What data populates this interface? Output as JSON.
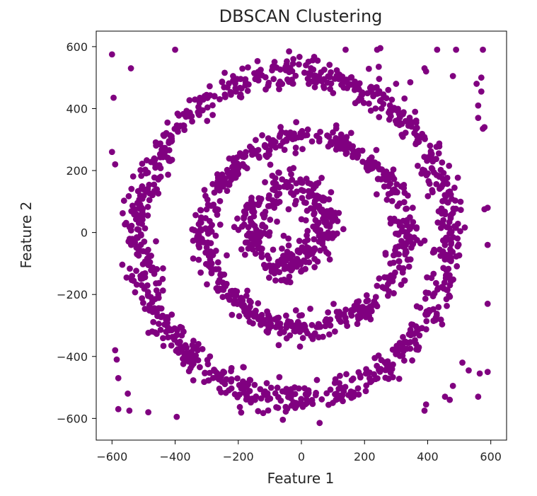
{
  "chart_data": {
    "type": "scatter",
    "title": "DBSCAN Clustering",
    "xlabel": "Feature 1",
    "ylabel": "Feature 2",
    "xlim": [
      -650,
      650
    ],
    "ylim": [
      -670,
      650
    ],
    "xticks": [
      -600,
      -400,
      -200,
      0,
      200,
      400,
      600
    ],
    "yticks": [
      -600,
      -400,
      -200,
      0,
      200,
      400,
      600
    ],
    "xtick_labels": [
      "−600",
      "−400",
      "−200",
      "0",
      "200",
      "400",
      "600"
    ],
    "ytick_labels": [
      "−600",
      "−400",
      "−200",
      "0",
      "200",
      "400",
      "600"
    ],
    "grid": false,
    "point_color": "#800080",
    "rings": [
      {
        "center": [
          -20,
          -10
        ],
        "radius_x": 490,
        "radius_y": 525,
        "noise": 28,
        "count": 950
      },
      {
        "center": [
          10,
          0
        ],
        "radius_x": 315,
        "radius_y": 305,
        "noise": 24,
        "count": 600
      },
      {
        "center": [
          -40,
          20
        ],
        "radius_x": 120,
        "radius_y": 120,
        "noise": 35,
        "count": 320
      }
    ],
    "outliers": [
      [
        -600,
        575
      ],
      [
        -540,
        530
      ],
      [
        -400,
        590
      ],
      [
        -595,
        435
      ],
      [
        -600,
        260
      ],
      [
        -590,
        220
      ],
      [
        -580,
        -570
      ],
      [
        -545,
        -575
      ],
      [
        -550,
        -520
      ],
      [
        -485,
        -580
      ],
      [
        -395,
        -595
      ],
      [
        -590,
        -380
      ],
      [
        -585,
        -410
      ],
      [
        -580,
        -470
      ],
      [
        140,
        590
      ],
      [
        240,
        590
      ],
      [
        250,
        595
      ],
      [
        245,
        535
      ],
      [
        300,
        480
      ],
      [
        345,
        485
      ],
      [
        390,
        530
      ],
      [
        395,
        520
      ],
      [
        430,
        590
      ],
      [
        480,
        505
      ],
      [
        490,
        590
      ],
      [
        555,
        480
      ],
      [
        570,
        500
      ],
      [
        570,
        455
      ],
      [
        580,
        340
      ],
      [
        575,
        335
      ],
      [
        560,
        410
      ],
      [
        560,
        370
      ],
      [
        575,
        590
      ],
      [
        580,
        75
      ],
      [
        590,
        80
      ],
      [
        590,
        -40
      ],
      [
        590,
        -230
      ],
      [
        590,
        -450
      ],
      [
        565,
        -455
      ],
      [
        510,
        -420
      ],
      [
        530,
        -445
      ],
      [
        480,
        -495
      ],
      [
        455,
        -530
      ],
      [
        470,
        -540
      ],
      [
        395,
        -555
      ],
      [
        390,
        -575
      ],
      [
        560,
        -530
      ]
    ]
  }
}
